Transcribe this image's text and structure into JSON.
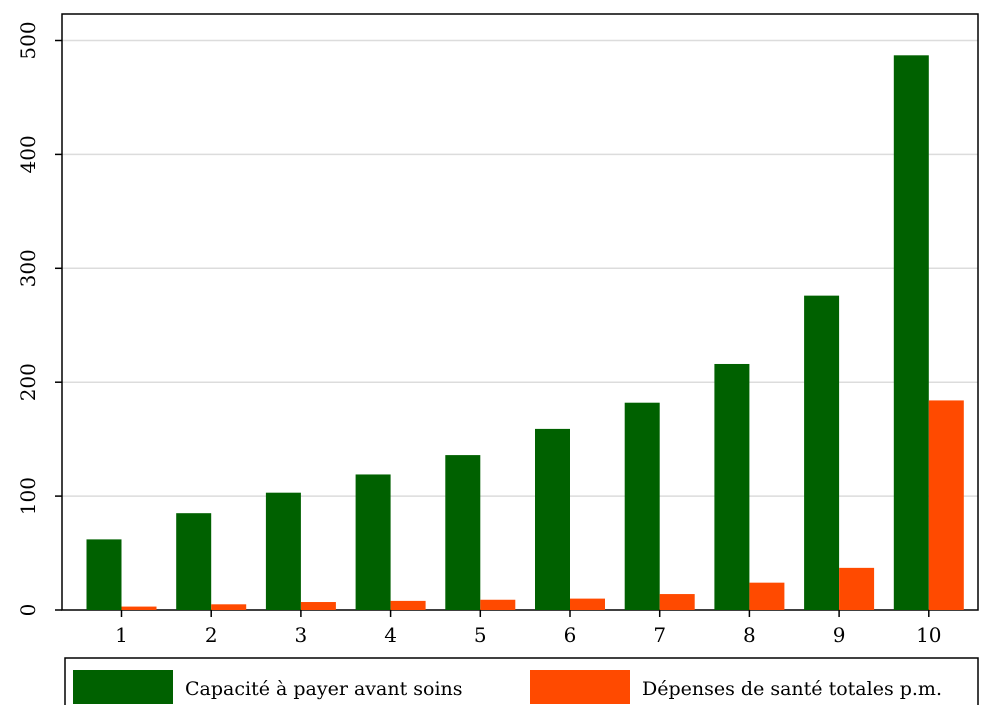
{
  "chart_data": {
    "type": "bar",
    "categories": [
      "1",
      "2",
      "3",
      "4",
      "5",
      "6",
      "7",
      "8",
      "9",
      "10"
    ],
    "series": [
      {
        "name": "Capacité à payer avant soins",
        "color": "#006100",
        "values": [
          62,
          85,
          103,
          119,
          136,
          159,
          182,
          216,
          276,
          487
        ]
      },
      {
        "name": "Dépenses de santé totales p.m.",
        "color": "#ff4a00",
        "values": [
          3,
          5,
          7,
          8,
          9,
          10,
          14,
          24,
          37,
          184
        ]
      }
    ],
    "yticks": [
      "0",
      "100",
      "200",
      "300",
      "400",
      "500"
    ],
    "ylim": [
      0,
      500
    ],
    "grid": true,
    "legend_position": "bottom"
  }
}
